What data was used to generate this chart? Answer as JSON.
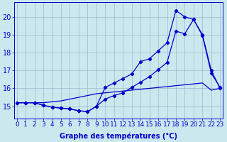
{
  "x": [
    0,
    1,
    2,
    3,
    4,
    5,
    6,
    7,
    8,
    9,
    10,
    11,
    12,
    13,
    14,
    15,
    16,
    17,
    18,
    19,
    20,
    21,
    22,
    23
  ],
  "line_flat": [
    15.2,
    15.2,
    15.2,
    15.2,
    15.25,
    15.3,
    15.4,
    15.5,
    15.6,
    15.7,
    15.75,
    15.8,
    15.85,
    15.9,
    15.95,
    16.0,
    16.05,
    16.1,
    16.15,
    16.2,
    16.25,
    16.3,
    15.9,
    16.0
  ],
  "line_mid": [
    15.2,
    15.2,
    15.2,
    15.05,
    14.95,
    14.9,
    14.85,
    14.75,
    14.7,
    15.0,
    15.4,
    15.6,
    15.75,
    16.05,
    16.35,
    16.65,
    17.05,
    17.45,
    19.2,
    19.05,
    19.85,
    18.95,
    16.85,
    16.05
  ],
  "line_peak": [
    15.2,
    15.2,
    15.2,
    15.05,
    14.95,
    14.9,
    14.85,
    14.75,
    14.7,
    15.0,
    16.05,
    16.3,
    16.55,
    16.8,
    17.5,
    17.65,
    18.1,
    18.55,
    20.35,
    20.0,
    19.85,
    19.0,
    17.0,
    16.0
  ],
  "xlabel": "Graphe des températures (°C)",
  "ylabel_ticks": [
    15,
    16,
    17,
    18,
    19,
    20
  ],
  "ylim": [
    14.3,
    20.8
  ],
  "xlim": [
    -0.3,
    23.3
  ],
  "bg_color": "#cce8ef",
  "line_color": "#0000cc",
  "grid_color": "#99bbcc",
  "xlabel_fontsize": 7,
  "tick_fontsize": 6.5
}
